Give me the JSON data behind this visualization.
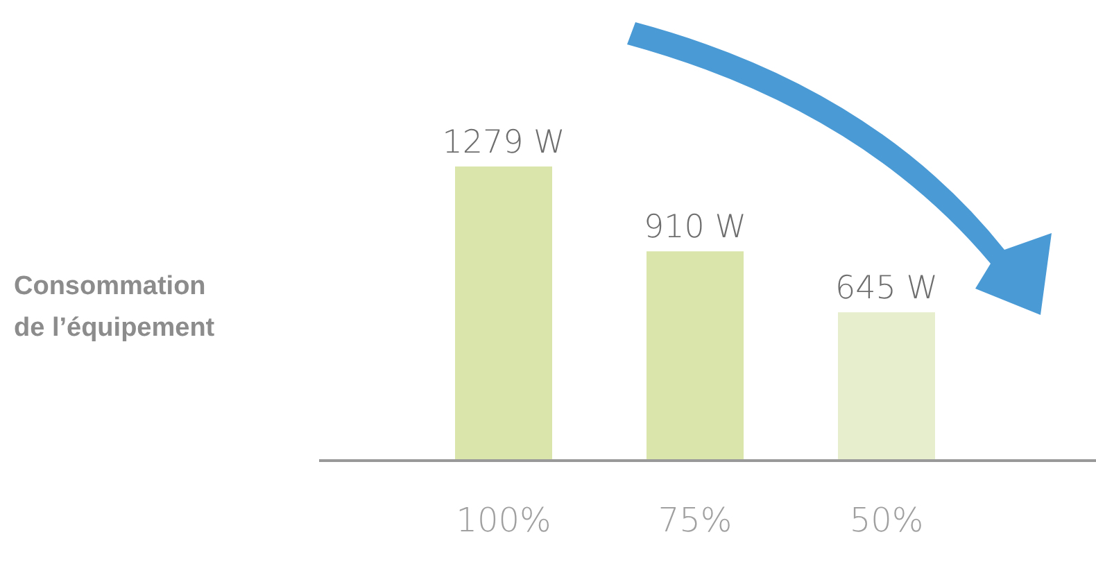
{
  "chart_data": {
    "type": "bar",
    "ylabel": "Consommation de l’équipement",
    "categories": [
      "100%",
      "75%",
      "50%"
    ],
    "values": [
      1279,
      910,
      645
    ],
    "colors": [
      "#d9e5aa",
      "#d9e5aa",
      "#e7eecd"
    ],
    "value_labels": [
      "1279 W",
      "910 W",
      "645 W"
    ]
  }
}
